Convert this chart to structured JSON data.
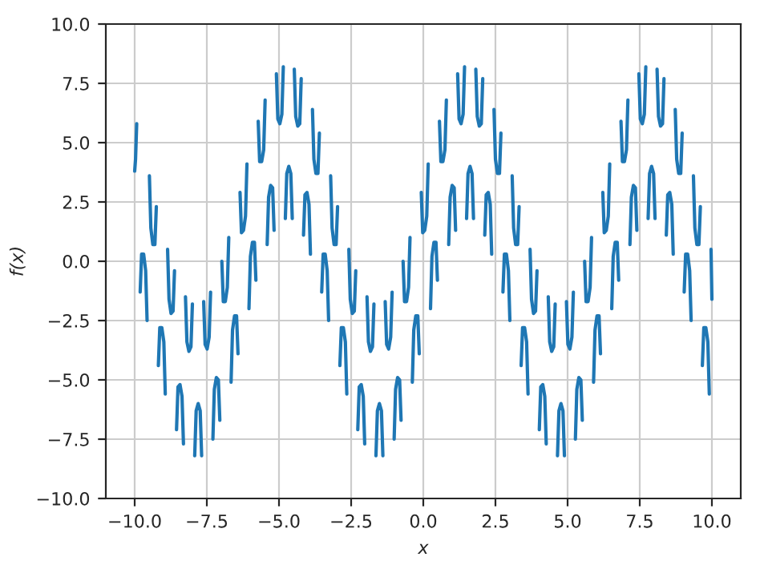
{
  "chart_data": {
    "type": "line",
    "xlabel": "x",
    "ylabel": "f(x)",
    "xlim": [
      -11,
      11
    ],
    "ylim": [
      -10,
      10
    ],
    "xticks": [
      {
        "value": -10,
        "label": "−10.0"
      },
      {
        "value": -7.5,
        "label": "−7.5"
      },
      {
        "value": -5,
        "label": "−5.0"
      },
      {
        "value": -2.5,
        "label": "−2.5"
      },
      {
        "value": 0,
        "label": "0.0"
      },
      {
        "value": 2.5,
        "label": "2.5"
      },
      {
        "value": 5,
        "label": "5.0"
      },
      {
        "value": 7.5,
        "label": "7.5"
      },
      {
        "value": 10,
        "label": "10.0"
      }
    ],
    "yticks": [
      {
        "value": -10,
        "label": "−10.0"
      },
      {
        "value": -7.5,
        "label": "−7.5"
      },
      {
        "value": -5,
        "label": "−5.0"
      },
      {
        "value": -2.5,
        "label": "−2.5"
      },
      {
        "value": 0,
        "label": "0.0"
      },
      {
        "value": 2.5,
        "label": "2.5"
      },
      {
        "value": 5,
        "label": "5.0"
      },
      {
        "value": 7.5,
        "label": "7.5"
      },
      {
        "value": 10,
        "label": "10.0"
      }
    ],
    "grid": true,
    "series": [
      {
        "color": "#1f77b4",
        "x": [
          -10.0,
          -9.97,
          -9.93,
          -9.86,
          -9.81,
          -9.76,
          -9.69,
          -9.62,
          -9.57,
          -9.53,
          -9.49,
          -9.44,
          -9.37,
          -9.3,
          -9.25,
          -9.21,
          -9.18,
          -9.13,
          -9.06,
          -8.99,
          -8.94,
          -8.9,
          -8.86,
          -8.81,
          -8.74,
          -8.67,
          -8.62,
          -8.58,
          -8.55,
          -8.5,
          -8.43,
          -8.36,
          -8.31,
          -8.27,
          -8.24,
          -8.19,
          -8.12,
          -8.05,
          -8.0,
          -7.96,
          -7.92,
          -7.87,
          -7.8,
          -7.73,
          -7.68,
          -7.64,
          -7.61,
          -7.56,
          -7.49,
          -7.42,
          -7.37,
          -7.33,
          -7.29,
          -7.24,
          -7.17,
          -7.1,
          -7.05,
          -7.01,
          -6.98,
          -6.93,
          -6.86,
          -6.79,
          -6.74,
          -6.7,
          -6.66,
          -6.61,
          -6.54,
          -6.47,
          -6.42,
          -6.38,
          -6.35,
          -6.3,
          -6.23,
          -6.16,
          -6.11,
          -6.07,
          -6.04,
          -5.99,
          -5.92,
          -5.85,
          -5.8,
          -5.76,
          -5.72,
          -5.67,
          -5.6,
          -5.53,
          -5.48,
          -5.44,
          -5.41,
          -5.36,
          -5.29,
          -5.22,
          -5.17,
          -5.13,
          -5.09,
          -5.04,
          -4.97,
          -4.9,
          -4.85,
          -4.81,
          -4.78,
          -4.73,
          -4.66,
          -4.59,
          -4.54,
          -4.5,
          -4.47,
          -4.42,
          -4.35,
          -4.28,
          -4.23,
          -4.19,
          -4.15,
          -4.1,
          -4.03,
          -3.96,
          -3.91,
          -3.87,
          -3.84,
          -3.79,
          -3.72,
          -3.65,
          -3.6,
          -3.56,
          -3.52,
          -3.47,
          -3.4,
          -3.33,
          -3.28,
          -3.24,
          -3.21,
          -3.16,
          -3.09,
          -3.02,
          -2.97,
          -2.93,
          -2.89,
          -2.84,
          -2.77,
          -2.7,
          -2.65,
          -2.61,
          -2.58,
          -2.53,
          -2.46,
          -2.39,
          -2.34,
          -2.3,
          -2.27,
          -2.22,
          -2.15,
          -2.08,
          -2.03,
          -1.99,
          -1.95,
          -1.9,
          -1.83,
          -1.76,
          -1.71,
          -1.67,
          -1.64,
          -1.59,
          -1.52,
          -1.45,
          -1.4,
          -1.36,
          -1.32,
          -1.27,
          -1.2,
          -1.13,
          -1.08,
          -1.04,
          -1.01,
          -0.96,
          -0.89,
          -0.82,
          -0.77,
          -0.73,
          -0.7,
          -0.65,
          -0.58,
          -0.51,
          -0.46,
          -0.42,
          -0.38,
          -0.33,
          -0.26,
          -0.19,
          -0.14,
          -0.1,
          -0.07,
          -0.02,
          0.05,
          0.12,
          0.17,
          0.21,
          0.25,
          0.3,
          0.37,
          0.44,
          0.49,
          0.53,
          0.56,
          0.61,
          0.68,
          0.75,
          0.8,
          0.84,
          0.88,
          0.93,
          1.0,
          1.07,
          1.12,
          1.16,
          1.19,
          1.24,
          1.31,
          1.38,
          1.43,
          1.47,
          1.5,
          1.55,
          1.62,
          1.69,
          1.74,
          1.78,
          1.82,
          1.87,
          1.94,
          2.01,
          2.06,
          2.1,
          2.13,
          2.18,
          2.25,
          2.32,
          2.37,
          2.41,
          2.45,
          2.5,
          2.57,
          2.64,
          2.69,
          2.73,
          2.76,
          2.81,
          2.88,
          2.95,
          3.0,
          3.04,
          3.08,
          3.13,
          3.2,
          3.27,
          3.32,
          3.36,
          3.39,
          3.44,
          3.51,
          3.58,
          3.63,
          3.67,
          3.7,
          3.75,
          3.82,
          3.89,
          3.94,
          3.98,
          4.02,
          4.07,
          4.14,
          4.21,
          4.26,
          4.3,
          4.33,
          4.38,
          4.45,
          4.52,
          4.57,
          4.61,
          4.65,
          4.7,
          4.77,
          4.84,
          4.89,
          4.93,
          4.96,
          5.01,
          5.08,
          5.15,
          5.2,
          5.24,
          5.27,
          5.32,
          5.39,
          5.46,
          5.51,
          5.55,
          5.59,
          5.64,
          5.71,
          5.78,
          5.83,
          5.87,
          5.9,
          5.95,
          6.02,
          6.09,
          6.14,
          6.18,
          6.22,
          6.27,
          6.34,
          6.41,
          6.46,
          6.5,
          6.53,
          6.58,
          6.65,
          6.72,
          6.77,
          6.81,
          6.85,
          6.9,
          6.97,
          7.04,
          7.09,
          7.13,
          7.16,
          7.21,
          7.28,
          7.35,
          7.4,
          7.44,
          7.47,
          7.52,
          7.59,
          7.66,
          7.71,
          7.75,
          7.79,
          7.84,
          7.91,
          7.98,
          8.03,
          8.07,
          8.1,
          8.15,
          8.22,
          8.29,
          8.34,
          8.38,
          8.42,
          8.47,
          8.54,
          8.61,
          8.66,
          8.7,
          8.73,
          8.78,
          8.85,
          8.92,
          8.97,
          9.01,
          9.04,
          9.09,
          9.16,
          9.23,
          9.28,
          9.32,
          9.36,
          9.41,
          9.48,
          9.55,
          9.6,
          9.64,
          9.67,
          9.72,
          9.79,
          9.86,
          9.91,
          9.95,
          9.97,
          10.0
        ],
        "values": [
          3.8,
          4.3,
          5.8,
          null,
          -1.3,
          0.3,
          0.3,
          -0.4,
          -2.5,
          null,
          3.6,
          1.4,
          0.7,
          0.7,
          2.3,
          null,
          -4.4,
          -2.8,
          -2.8,
          -3.4,
          -5.6,
          null,
          0.5,
          -1.6,
          -2.2,
          -2.1,
          -0.4,
          null,
          -7.1,
          -5.3,
          -5.2,
          -5.7,
          -7.7,
          null,
          -1.5,
          -3.4,
          -3.8,
          -3.6,
          -1.8,
          null,
          -8.2,
          -6.3,
          -6.0,
          -6.3,
          -8.2,
          null,
          -1.7,
          -3.5,
          -3.7,
          -3.2,
          -1.3,
          null,
          -7.5,
          -5.4,
          -4.9,
          -5.0,
          -6.7,
          null,
          0.0,
          -1.7,
          -1.7,
          -1.1,
          1.0,
          null,
          -5.1,
          -2.9,
          -2.3,
          -2.3,
          -3.9,
          null,
          2.9,
          1.2,
          1.3,
          1.9,
          4.1,
          null,
          -2.0,
          0.2,
          0.8,
          0.8,
          -0.8,
          null,
          5.9,
          4.2,
          4.2,
          4.7,
          6.8,
          null,
          0.7,
          2.7,
          3.2,
          3.1,
          1.3,
          null,
          7.9,
          6.0,
          5.8,
          6.2,
          8.2,
          null,
          1.8,
          3.7,
          4.0,
          3.7,
          1.8,
          null,
          8.1,
          6.1,
          5.7,
          5.8,
          7.7,
          null,
          1.1,
          2.8,
          2.9,
          2.4,
          0.3,
          null,
          6.4,
          4.3,
          3.7,
          3.7,
          5.4,
          null,
          -1.3,
          0.3,
          0.3,
          -0.4,
          -2.5,
          null,
          3.6,
          1.4,
          0.7,
          0.7,
          2.3,
          null,
          -4.4,
          -2.8,
          -2.8,
          -3.4,
          -5.6,
          null,
          0.5,
          -1.6,
          -2.2,
          -2.1,
          -0.4,
          null,
          -7.1,
          -5.3,
          -5.2,
          -5.7,
          -7.7,
          null,
          -1.5,
          -3.4,
          -3.8,
          -3.6,
          -1.8,
          null,
          -8.2,
          -6.3,
          -6.0,
          -6.3,
          -8.2,
          null,
          -1.7,
          -3.5,
          -3.7,
          -3.2,
          -1.3,
          null,
          -7.5,
          -5.4,
          -4.9,
          -5.0,
          -6.7,
          null,
          0.0,
          -1.7,
          -1.7,
          -1.1,
          1.0,
          null,
          -5.1,
          -2.9,
          -2.3,
          -2.3,
          -3.9,
          null,
          2.9,
          1.2,
          1.3,
          1.9,
          4.1,
          null,
          -2.0,
          0.2,
          0.8,
          0.8,
          -0.8,
          null,
          5.9,
          4.2,
          4.2,
          4.7,
          6.8,
          null,
          0.7,
          2.7,
          3.2,
          3.1,
          1.3,
          null,
          7.9,
          6.0,
          5.8,
          6.2,
          8.2,
          null,
          1.8,
          3.7,
          4.0,
          3.7,
          1.8,
          null,
          8.1,
          6.1,
          5.7,
          5.8,
          7.7,
          null,
          1.1,
          2.8,
          2.9,
          2.4,
          0.3,
          null,
          6.4,
          4.3,
          3.7,
          3.7,
          5.4,
          null,
          -1.3,
          0.3,
          0.3,
          -0.4,
          -2.5,
          null,
          3.6,
          1.4,
          0.7,
          0.7,
          2.3,
          null,
          -4.4,
          -2.8,
          -2.8,
          -3.4,
          -5.6,
          null,
          0.5,
          -1.6,
          -2.2,
          -2.1,
          -0.4,
          null,
          -7.1,
          -5.3,
          -5.2,
          -5.7,
          -7.7,
          null,
          -1.5,
          -3.4,
          -3.8,
          -3.6,
          -1.8,
          null,
          -8.2,
          -6.3,
          -6.0,
          -6.3,
          -8.2,
          null,
          -1.7,
          -3.5,
          -3.7,
          -3.2,
          -1.3,
          null,
          -7.5,
          -5.4,
          -4.9,
          -5.0,
          -6.7,
          null,
          0.0,
          -1.7,
          -1.7,
          -1.1,
          1.0,
          null,
          -5.1,
          -2.9,
          -2.3,
          -2.3,
          -3.9,
          null,
          2.9,
          1.2,
          1.3,
          1.9,
          4.1,
          null,
          -2.0,
          0.2,
          0.8,
          0.8,
          -0.8,
          null,
          5.9,
          4.2,
          4.2,
          4.7,
          6.8,
          null,
          0.7,
          2.7,
          3.2,
          3.1,
          1.3,
          null,
          7.9,
          6.0,
          5.8,
          6.2,
          8.2,
          null,
          1.8,
          3.7,
          4.0,
          3.7,
          1.8,
          null,
          8.1,
          6.1,
          5.7,
          5.8,
          7.7,
          null,
          1.1,
          2.8,
          2.9,
          2.4,
          0.3,
          null,
          6.4,
          4.3,
          3.7,
          3.7,
          5.4,
          null,
          -1.3,
          0.3,
          0.3,
          -0.4,
          -2.5,
          null,
          3.6,
          1.4,
          0.7,
          0.7,
          2.3,
          null,
          -4.4,
          -2.8,
          -2.8,
          -3.4,
          -5.6,
          null,
          0.5,
          -1.6
        ]
      }
    ]
  }
}
